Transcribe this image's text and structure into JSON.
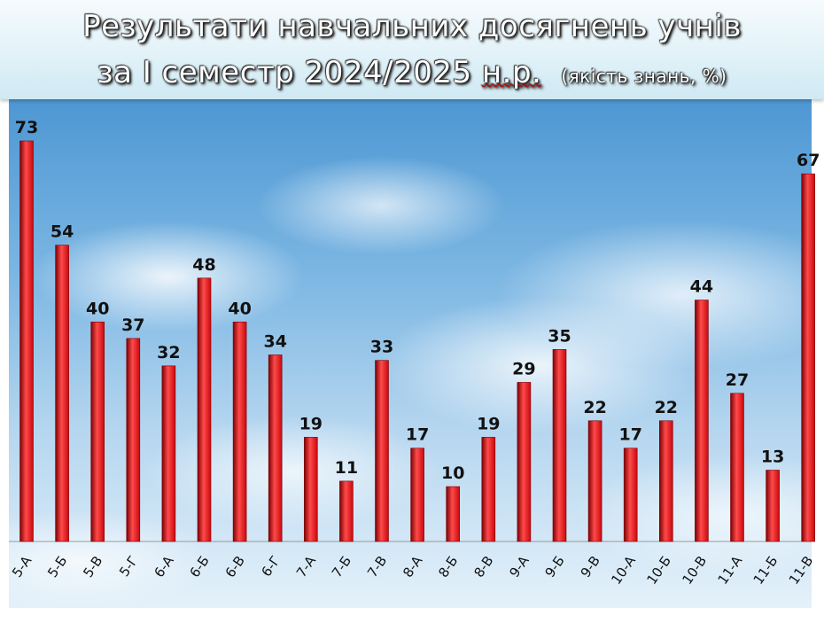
{
  "title": {
    "line1": "Результати навчальних досягнень учнів",
    "line2_prefix": "за  І семестр 2024/2025 ",
    "line2_suffix": "н.р.",
    "subtitle": "(якість знань, %)"
  },
  "colors": {
    "bar": "#c8080e",
    "bar_dark": "#7d0004",
    "bar_light": "#ff4a4a"
  },
  "chart_data": {
    "type": "bar",
    "title": "Результати навчальних досягнень учнів за І семестр 2024/2025 н.р.",
    "subtitle": "(якість знань, %)",
    "categories": [
      "5-А",
      "5-Б",
      "5-В",
      "5-Г",
      "6-А",
      "6-Б",
      "6-В",
      "6-Г",
      "7-А",
      "7-Б",
      "7-В",
      "8-А",
      "8-Б",
      "8-В",
      "9-А",
      "9-Б",
      "9-В",
      "10-А",
      "10-Б",
      "10-В",
      "11-А",
      "11-Б",
      "11-В"
    ],
    "values": [
      73,
      54,
      40,
      37,
      32,
      48,
      40,
      34,
      19,
      11,
      33,
      17,
      10,
      19,
      29,
      35,
      22,
      17,
      22,
      44,
      27,
      13,
      67
    ],
    "ylim": [
      0,
      80
    ],
    "grid": false,
    "legend": "none",
    "data_labels": true
  }
}
